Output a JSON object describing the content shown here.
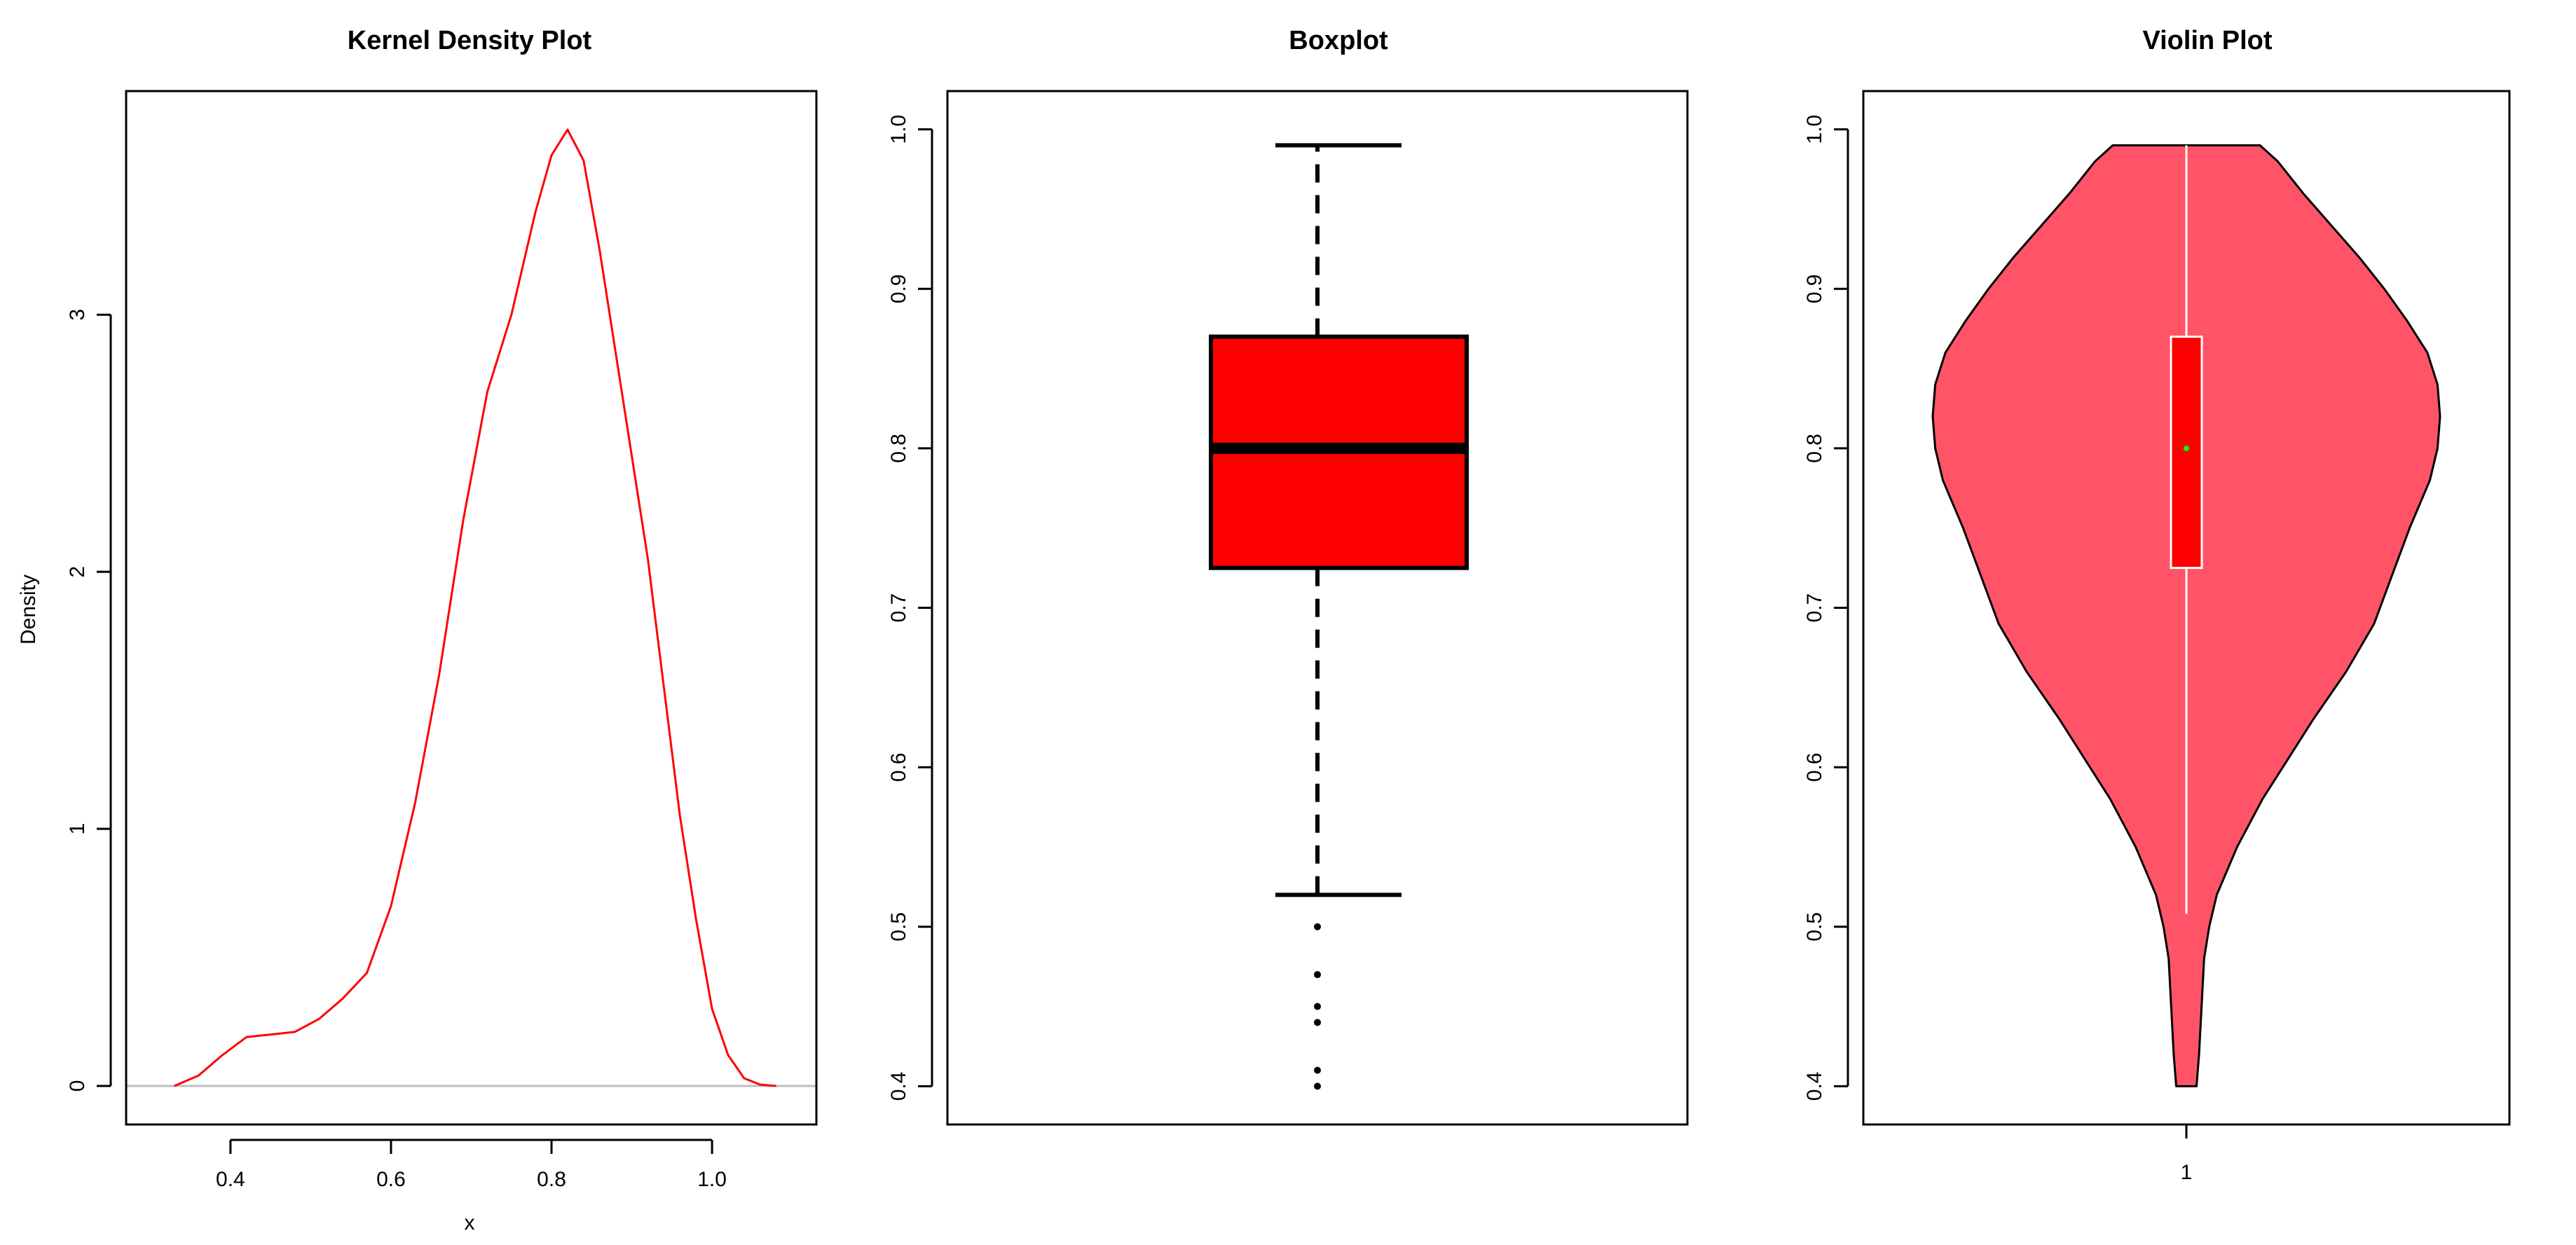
{
  "chart_data": [
    {
      "type": "line",
      "title": "Kernel Density Plot",
      "xlabel": "x",
      "ylabel": "Density",
      "xlim": [
        0.27,
        1.13
      ],
      "ylim": [
        -0.15,
        3.87
      ],
      "xticks": [
        0.4,
        0.6,
        0.8,
        1.0
      ],
      "xtick_labels": [
        "0.4",
        "0.6",
        "0.8",
        "1.0"
      ],
      "yticks": [
        0,
        1,
        2,
        3
      ],
      "ytick_labels": [
        "0",
        "1",
        "2",
        "3"
      ],
      "baseline": 0,
      "colors": {
        "line": "#ff0000",
        "baseline": "#bebebe"
      },
      "series": [
        {
          "x": [
            0.33,
            0.36,
            0.39,
            0.42,
            0.45,
            0.48,
            0.51,
            0.54,
            0.57,
            0.6,
            0.63,
            0.66,
            0.69,
            0.72,
            0.75,
            0.78,
            0.8,
            0.82,
            0.84,
            0.86,
            0.88,
            0.9,
            0.92,
            0.94,
            0.96,
            0.98,
            1.0,
            1.02,
            1.04,
            1.06,
            1.08
          ],
          "y": [
            0.0,
            0.04,
            0.12,
            0.19,
            0.2,
            0.21,
            0.26,
            0.34,
            0.44,
            0.7,
            1.1,
            1.6,
            2.2,
            2.7,
            3.0,
            3.4,
            3.62,
            3.72,
            3.6,
            3.25,
            2.85,
            2.45,
            2.05,
            1.55,
            1.05,
            0.65,
            0.3,
            0.12,
            0.03,
            0.005,
            0.0
          ]
        }
      ]
    },
    {
      "type": "box",
      "title": "Boxplot",
      "ylim": [
        0.376,
        1.024
      ],
      "yticks": [
        0.4,
        0.5,
        0.6,
        0.7,
        0.8,
        0.9,
        1.0
      ],
      "ytick_labels": [
        "0.4",
        "0.5",
        "0.6",
        "0.7",
        "0.8",
        "0.9",
        "1.0"
      ],
      "box": {
        "min": 0.52,
        "q1": 0.725,
        "median": 0.8,
        "q3": 0.87,
        "max": 0.99
      },
      "outliers": [
        0.5,
        0.47,
        0.45,
        0.44,
        0.41,
        0.4
      ],
      "colors": {
        "box_fill": "#ff0000",
        "stroke": "#000000"
      }
    },
    {
      "type": "violin",
      "title": "Violin Plot",
      "ylim": [
        0.376,
        1.024
      ],
      "yticks": [
        0.4,
        0.5,
        0.6,
        0.7,
        0.8,
        0.9,
        1.0
      ],
      "ytick_labels": [
        "0.4",
        "0.5",
        "0.6",
        "0.7",
        "0.8",
        "0.9",
        "1.0"
      ],
      "xticks": [
        1
      ],
      "xtick_labels": [
        "1"
      ],
      "y_range": [
        0.4,
        0.99
      ],
      "density_profile": {
        "y": [
          0.4,
          0.42,
          0.45,
          0.48,
          0.5,
          0.52,
          0.55,
          0.58,
          0.6,
          0.63,
          0.66,
          0.69,
          0.72,
          0.75,
          0.78,
          0.8,
          0.82,
          0.84,
          0.86,
          0.88,
          0.9,
          0.92,
          0.94,
          0.96,
          0.98,
          0.99
        ],
        "half_width": [
          0.04,
          0.05,
          0.06,
          0.07,
          0.09,
          0.12,
          0.2,
          0.3,
          0.38,
          0.5,
          0.63,
          0.74,
          0.81,
          0.88,
          0.96,
          0.99,
          1.0,
          0.99,
          0.95,
          0.87,
          0.78,
          0.68,
          0.57,
          0.46,
          0.36,
          0.29
        ]
      },
      "box": {
        "q1": 0.725,
        "median": 0.8,
        "q3": 0.87,
        "whisker_low": 0.508,
        "whisker_high": 0.99
      },
      "colors": {
        "violin_fill": "#ff5468",
        "box_fill": "#ff0000",
        "whisker": "#ffffff",
        "median_dot": "#00ff00",
        "outline": "#000000"
      }
    }
  ]
}
